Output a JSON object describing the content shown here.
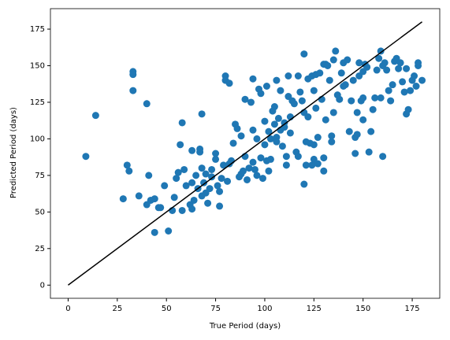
{
  "chart_data": {
    "type": "scatter",
    "xlabel": "True Period (days)",
    "ylabel": "Predicted Period (days)",
    "xlim": [
      -9,
      189
    ],
    "ylim": [
      -9,
      189
    ],
    "xticks": [
      0,
      25,
      50,
      75,
      100,
      125,
      150,
      175
    ],
    "yticks": [
      0,
      25,
      50,
      75,
      100,
      125,
      150,
      175
    ],
    "series": [
      {
        "type": "scatter",
        "color": "#1f77b4",
        "x": [
          9,
          14,
          28,
          30,
          31,
          33,
          33,
          33,
          36,
          40,
          40,
          41,
          42,
          44,
          44,
          46,
          47,
          49,
          51,
          53,
          54,
          55,
          56,
          57,
          58,
          58,
          59,
          60,
          62,
          63,
          63,
          63,
          64,
          65,
          66,
          67,
          67,
          68,
          68,
          68,
          69,
          70,
          70,
          71,
          72,
          73,
          73,
          75,
          75,
          76,
          77,
          77,
          78,
          79,
          80,
          80,
          81,
          82,
          82,
          83,
          84,
          85,
          86,
          87,
          88,
          88,
          89,
          90,
          90,
          91,
          92,
          93,
          94,
          94,
          94,
          95,
          96,
          96,
          97,
          98,
          98,
          99,
          100,
          100,
          101,
          101,
          102,
          102,
          103,
          103,
          104,
          105,
          105,
          106,
          106,
          106,
          107,
          108,
          108,
          109,
          110,
          110,
          111,
          111,
          112,
          112,
          113,
          113,
          114,
          115,
          116,
          117,
          117,
          118,
          119,
          120,
          120,
          120,
          121,
          121,
          122,
          122,
          123,
          124,
          124,
          125,
          125,
          125,
          126,
          126,
          127,
          127,
          128,
          129,
          130,
          130,
          130,
          131,
          131,
          132,
          133,
          134,
          134,
          135,
          135,
          136,
          137,
          138,
          139,
          140,
          140,
          141,
          142,
          143,
          144,
          145,
          146,
          146,
          147,
          147,
          148,
          148,
          149,
          150,
          150,
          150,
          151,
          152,
          153,
          154,
          155,
          156,
          157,
          158,
          159,
          159,
          160,
          160,
          161,
          162,
          163,
          164,
          165,
          166,
          167,
          168,
          169,
          170,
          171,
          172,
          172,
          173,
          174,
          175,
          176,
          177,
          178,
          180,
          178
        ],
        "values": [
          88,
          116,
          59,
          82,
          78,
          146,
          144,
          133,
          61,
          124,
          55,
          75,
          58,
          59,
          36,
          53,
          53,
          68,
          37,
          51,
          60,
          73,
          77,
          96,
          51,
          111,
          79,
          68,
          55,
          52,
          70,
          92,
          58,
          75,
          66,
          93,
          91,
          117,
          61,
          80,
          70,
          63,
          76,
          56,
          66,
          79,
          74,
          90,
          86,
          68,
          54,
          64,
          73,
          82,
          143,
          140,
          71,
          138,
          83,
          85,
          97,
          110,
          107,
          74,
          76,
          102,
          78,
          88,
          127,
          72,
          80,
          125,
          141,
          106,
          84,
          79,
          75,
          100,
          134,
          131,
          87,
          73,
          112,
          96,
          136,
          85,
          105,
          78,
          100,
          86,
          119,
          122,
          110,
          101,
          98,
          140,
          114,
          106,
          133,
          95,
          111,
          108,
          82,
          88,
          129,
          143,
          115,
          104,
          126,
          124,
          91,
          143,
          88,
          132,
          126,
          118,
          158,
          69,
          82,
          98,
          141,
          115,
          97,
          82,
          143,
          96,
          86,
          133,
          144,
          121,
          101,
          83,
          145,
          127,
          78,
          87,
          151,
          151,
          113,
          150,
          140,
          98,
          102,
          154,
          118,
          160,
          130,
          127,
          145,
          152,
          136,
          137,
          154,
          105,
          126,
          140,
          101,
          90,
          118,
          103,
          143,
          152,
          126,
          128,
          113,
          146,
          151,
          149,
          91,
          105,
          120,
          128,
          147,
          155,
          160,
          128,
          88,
          150,
          152,
          147,
          133,
          126,
          137,
          153,
          155,
          148,
          152,
          139,
          132,
          148,
          117,
          120,
          133,
          140,
          143,
          136,
          150,
          140,
          152
        ]
      },
      {
        "type": "line",
        "color": "#000000",
        "x": [
          0,
          180
        ],
        "values": [
          0,
          180
        ]
      }
    ]
  }
}
